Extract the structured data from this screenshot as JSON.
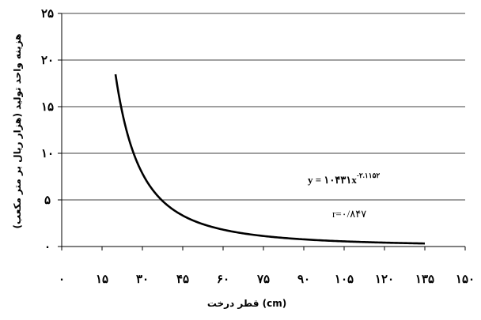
{
  "chart_data": {
    "type": "line",
    "xlabel": "قطر درخت (cm)",
    "ylabel": "هزینه واحد تولید (هزار ریال بر متر مکعب)",
    "xlim": [
      0,
      150
    ],
    "ylim": [
      0,
      25
    ],
    "x_ticks": [
      "۰",
      "۱۵",
      "۳۰",
      "۴۵",
      "۶۰",
      "۷۵",
      "۹۰",
      "۱۰۵",
      "۱۲۰",
      "۱۳۵",
      "۱۵۰"
    ],
    "y_ticks": [
      "۰",
      "۵",
      "۱۰",
      "۱۵",
      "۲۰",
      "۲۵"
    ],
    "grid": {
      "horizontal": true,
      "vertical": false
    },
    "series": [
      {
        "model": "power",
        "coefficient": 10431,
        "exponent": -2.1152,
        "x_range": [
          20,
          135
        ]
      }
    ],
    "equation": {
      "base": "y = ۱۰۴۳۱x",
      "exponent": "-۲.۱۱۵۲"
    },
    "r_label": "r=۰/۸۴۷"
  }
}
